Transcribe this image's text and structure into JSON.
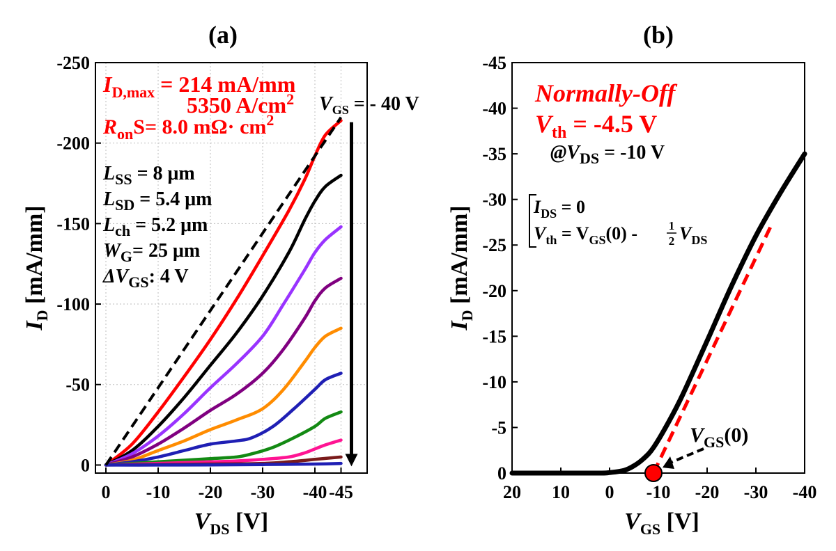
{
  "chart_data": [
    {
      "type": "line",
      "panel_label": "(a)",
      "xlabel": {
        "main": "V",
        "sub": "DS",
        "unit": " [V]"
      },
      "ylabel": {
        "main": "I",
        "sub": "D",
        "unit": " [mA/mm]"
      },
      "xlim": [
        2,
        -50
      ],
      "ylim": [
        5,
        -250
      ],
      "x_ticks": [
        0,
        -10,
        -20,
        -30,
        -40,
        -45
      ],
      "x_tick_labels": [
        "0",
        "-10",
        "-20",
        "-30",
        "-40",
        "-45"
      ],
      "y_ticks": [
        0,
        -50,
        -100,
        -150,
        -200,
        -250
      ],
      "y_tick_labels": [
        "0",
        "-50",
        "-100",
        "-150",
        "-200",
        "-250"
      ],
      "grid": true,
      "series": [
        {
          "color": "#ff0000",
          "x": [
            0,
            -5,
            -10,
            -15,
            -20,
            -25,
            -30,
            -35,
            -38,
            -40,
            -42,
            -45
          ],
          "y": [
            0,
            -13,
            -33,
            -55,
            -78,
            -103,
            -130,
            -158,
            -177,
            -192,
            -205,
            -214
          ]
        },
        {
          "color": "#000000",
          "x": [
            0,
            -5,
            -10,
            -15,
            -20,
            -25,
            -30,
            -35,
            -38,
            -40,
            -42,
            -45
          ],
          "y": [
            0,
            -9,
            -24,
            -42,
            -62,
            -82,
            -105,
            -132,
            -152,
            -164,
            -173,
            -180
          ]
        },
        {
          "color": "#9933ff",
          "x": [
            0,
            -5,
            -10,
            -15,
            -20,
            -25,
            -30,
            -34,
            -38,
            -40,
            -42,
            -45
          ],
          "y": [
            0,
            -7,
            -18,
            -32,
            -48,
            -63,
            -80,
            -100,
            -121,
            -132,
            -140,
            -148
          ]
        },
        {
          "color": "#800080",
          "x": [
            0,
            -5,
            -10,
            -15,
            -20,
            -25,
            -30,
            -34,
            -38,
            -40,
            -42,
            -45
          ],
          "y": [
            0,
            -5,
            -13,
            -23,
            -34,
            -44,
            -57,
            -72,
            -91,
            -102,
            -110,
            -116
          ]
        },
        {
          "color": "#ff8c00",
          "x": [
            0,
            -5,
            -10,
            -15,
            -20,
            -25,
            -30,
            -34,
            -38,
            -40,
            -42,
            -45
          ],
          "y": [
            0,
            -3,
            -9,
            -15,
            -22,
            -28,
            -35,
            -47,
            -64,
            -73,
            -80,
            -85
          ]
        },
        {
          "color": "#1f1fb4",
          "x": [
            0,
            -5,
            -10,
            -15,
            -20,
            -25,
            -28,
            -32,
            -36,
            -40,
            -42,
            -45
          ],
          "y": [
            0,
            -2,
            -5,
            -9,
            -13,
            -15,
            -17,
            -24,
            -35,
            -47,
            -53,
            -57
          ]
        },
        {
          "color": "#138a13",
          "x": [
            0,
            -5,
            -10,
            -15,
            -20,
            -25,
            -28,
            -32,
            -36,
            -40,
            -42,
            -45
          ],
          "y": [
            0,
            -1,
            -2,
            -3,
            -4,
            -5,
            -7,
            -11,
            -17,
            -24,
            -29,
            -33
          ]
        },
        {
          "color": "#ff1493",
          "x": [
            0,
            -5,
            -10,
            -15,
            -20,
            -25,
            -30,
            -35,
            -38,
            -40,
            -42,
            -45
          ],
          "y": [
            0,
            -0.5,
            -1,
            -1.5,
            -2,
            -2.5,
            -3.5,
            -5,
            -7.5,
            -10,
            -12.5,
            -15.5
          ]
        },
        {
          "color": "#7a1b1b",
          "x": [
            0,
            -10,
            -20,
            -30,
            -35,
            -40,
            -45
          ],
          "y": [
            0,
            -0.3,
            -0.6,
            -1,
            -2,
            -3.5,
            -5
          ]
        },
        {
          "color": "#1f1fb4",
          "x": [
            0,
            -10,
            -20,
            -30,
            -40,
            -45
          ],
          "y": [
            0,
            0,
            -0.1,
            -0.3,
            -0.6,
            -1
          ]
        }
      ],
      "dashed_line": {
        "x": [
          0,
          -45
        ],
        "y": [
          0,
          -216
        ]
      },
      "arrow": {
        "x": -47,
        "y_from": -213,
        "y_to": 0
      },
      "annotations": {
        "idmax_label": "I",
        "idmax_sub": "D,max",
        "idmax_value": " = 214 mA/mm",
        "idmax_value2": "5350 A/cm",
        "idmax_sup": "2",
        "ron_label": "R",
        "ron_sub": "on",
        "ron_value": "S= 8.0 mΩ· cm",
        "ron_sup": "2",
        "vgs_label": "V",
        "vgs_sub": "GS",
        "vgs_value": " = - 40 V",
        "params": [
          {
            "label": "L",
            "sub": "SS",
            "value": " = 8 μm"
          },
          {
            "label": "L",
            "sub": "SD",
            "value": " = 5.4 μm"
          },
          {
            "label": "L",
            "sub": "ch",
            "value": " = 5.2 μm"
          },
          {
            "label": "W",
            "sub": "G",
            "value": "= 25 μm"
          },
          {
            "label": "ΔV",
            "sub": "GS",
            "value": ": 4 V"
          }
        ]
      }
    },
    {
      "type": "line",
      "panel_label": "(b)",
      "xlabel": {
        "main": "V",
        "sub": "GS",
        "unit": " [V]"
      },
      "ylabel": {
        "main": "I",
        "sub": "D",
        "unit": " [mA/mm]"
      },
      "xlim": [
        20,
        -40
      ],
      "ylim": [
        0,
        -45
      ],
      "x_ticks": [
        20,
        10,
        0,
        -10,
        -20,
        -30,
        -40
      ],
      "x_tick_labels": [
        "20",
        "10",
        "0",
        "-10",
        "-20",
        "-30",
        "-40"
      ],
      "y_ticks": [
        0,
        -5,
        -10,
        -15,
        -20,
        -25,
        -30,
        -35,
        -40,
        -45
      ],
      "y_tick_labels": [
        "0",
        "-5",
        "-10",
        "-15",
        "-20",
        "-25",
        "-30",
        "-35",
        "-40",
        "-45"
      ],
      "grid": false,
      "series": [
        {
          "color": "#000000",
          "x": [
            20,
            10,
            2,
            0,
            -3,
            -5,
            -7,
            -9,
            -12,
            -15,
            -20,
            -25,
            -30,
            -35,
            -40
          ],
          "y": [
            0,
            0,
            0,
            -0.05,
            -0.3,
            -0.8,
            -1.6,
            -2.8,
            -5.5,
            -8.6,
            -14.5,
            -20.5,
            -26,
            -30.7,
            -35
          ]
        }
      ],
      "fit_line": {
        "color": "#ff0000",
        "x": [
          -9,
          -33
        ],
        "y": [
          0,
          -27
        ]
      },
      "marker": {
        "x": -9,
        "y": 0,
        "label": "V",
        "sub": "GS",
        "suffix": "(0)"
      },
      "annotations": {
        "title1": "Normally-Off",
        "vth_label": "V",
        "vth_sub": "th",
        "vth_value": " = -4.5 V",
        "at_label": "@V",
        "at_sub": "DS",
        "at_value": " = -10 V",
        "eq1_label": "I",
        "eq1_sub": "DS",
        "eq1_value": " = 0",
        "eq2_label": "V",
        "eq2_sub": "th",
        "eq2_mid": " = V",
        "eq2_mid_sub": "GS",
        "eq2_tail": "(0) - ",
        "eq2_num": "1",
        "eq2_den": "2",
        "eq2_v": "V",
        "eq2_v_sub": "DS"
      }
    }
  ]
}
